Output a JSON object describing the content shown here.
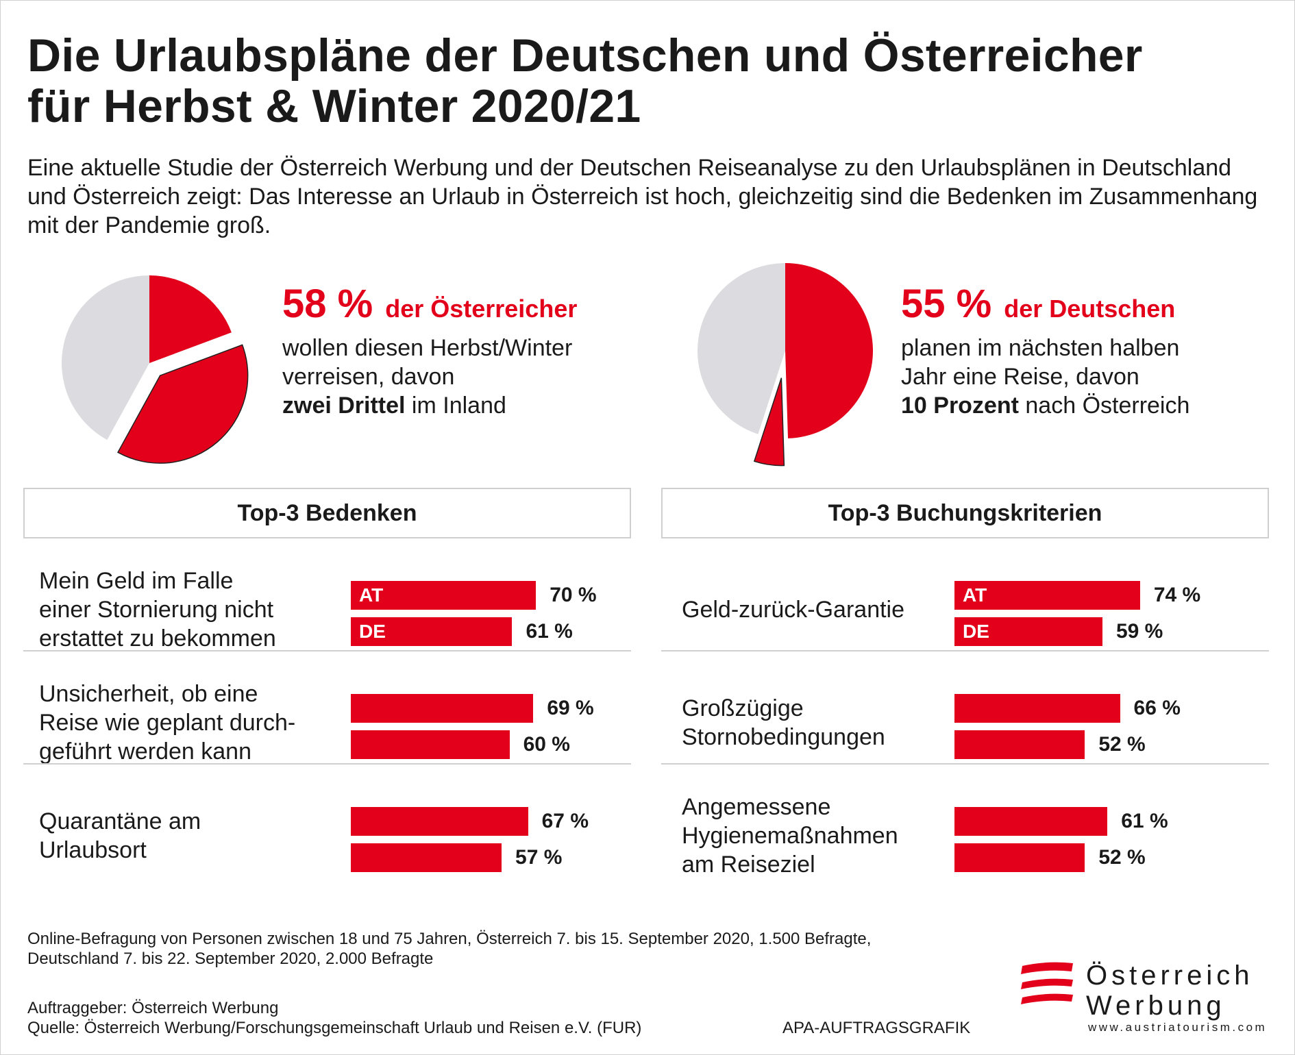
{
  "title": "Die Urlaubspläne der Deutschen und Österreicher\nfür Herbst & Winter 2020/21",
  "intro": "Eine aktuelle Studie der Österreich Werbung und der Deutschen Reiseanalyse zu den Urlaubsplänen in Deutschland und Österreich zeigt: Das Interesse an Urlaub in Österreich ist hoch, gleichzeitig sind die Bedenken im Zusammenhang mit der Pandemie groß.",
  "kpi_at": {
    "pct": "58 %",
    "who": "der Österreicher",
    "line1": "wollen diesen Herbst/Winter",
    "line2": "verreisen, davon",
    "bold": "zwei Drittel",
    "rest": " im Inland"
  },
  "kpi_de": {
    "pct": "55 %",
    "who": "der Deutschen",
    "line1": "planen im nächsten halben",
    "line2": "Jahr eine Reise, davon",
    "bold": "10 Prozent",
    "rest": " nach Österreich"
  },
  "concerns": {
    "header": "Top-3 Bedenken",
    "items": [
      {
        "label": "Mein Geld im Falle\neiner Stornierung nicht\nerstattet zu bekommen",
        "at_label": "70 %",
        "de_label": "61 %"
      },
      {
        "label": "Unsicherheit, ob eine\nReise wie geplant durch-\ngeführt werden kann",
        "at_label": "69 %",
        "de_label": "60 %"
      },
      {
        "label": "Quarantäne am\nUrlaubsort",
        "at_label": "67 %",
        "de_label": "57 %"
      }
    ]
  },
  "criteria": {
    "header": "Top-3 Buchungskriterien",
    "items": [
      {
        "label": "Geld-zurück-Garantie",
        "at_label": "74 %",
        "de_label": "59 %"
      },
      {
        "label": "Großzügige\nStornobedingungen",
        "at_label": "66 %",
        "de_label": "52 %"
      },
      {
        "label": "Angemessene\nHygienemaßnahmen\nam Reiseziel",
        "at_label": "61 %",
        "de_label": "52 %"
      }
    ]
  },
  "series_tags": {
    "at": "AT",
    "de": "DE"
  },
  "footnote": "Online-Befragung von Personen zwischen 18 und 75 Jahren, Österreich 7. bis 15. September 2020, 1.500 Befragte,\nDeutschland 7. bis 22. September 2020, 2.000 Befragte",
  "client": "Auftraggeber: Österreich Werbung\nQuelle: Österreich Werbung/Forschungsgemeinschaft Urlaub und Reisen e.V. (FUR)",
  "apa": "APA-AUFTRAGSGRAFIK",
  "logo": {
    "word": "Österreich\nWerbung",
    "url": "www.austriatourism.com"
  },
  "colors": {
    "accent": "#e2001a",
    "grey": "#dcdce0",
    "text": "#1a1a1a"
  },
  "chart_data": [
    {
      "type": "pie",
      "title": "58 % der Österreicher",
      "slices": [
        {
          "value": 58,
          "exploded": false
        },
        {
          "value": 42,
          "exploded": false
        }
      ],
      "sub_slices_of_travel": [
        {
          "value": 0.333
        },
        {
          "value": 0.667,
          "exploded": true
        }
      ]
    },
    {
      "type": "pie",
      "title": "55 % der Deutschen",
      "slices": [
        {
          "value": 55
        },
        {
          "value": 45
        }
      ],
      "sub_slices_of_travel": [
        {
          "value": 0.9
        },
        {
          "value": 0.1,
          "exploded": true
        }
      ]
    },
    {
      "type": "bar",
      "title": "Top-3 Bedenken",
      "categories": [
        "Mein Geld im Falle einer Stornierung nicht erstattet zu bekommen",
        "Unsicherheit, ob eine Reise wie geplant durchgeführt werden kann",
        "Quarantäne am Urlaubsort"
      ],
      "series": [
        {
          "name": "AT",
          "values": [
            70,
            69,
            67
          ]
        },
        {
          "name": "DE",
          "values": [
            61,
            60,
            57
          ]
        }
      ]
    },
    {
      "type": "bar",
      "title": "Top-3 Buchungskriterien",
      "categories": [
        "Geld-zurück-Garantie",
        "Großzügige Stornobedingungen",
        "Angemessene Hygienemaßnahmen am Reiseziel"
      ],
      "series": [
        {
          "name": "AT",
          "values": [
            74,
            66,
            61
          ]
        },
        {
          "name": "DE",
          "values": [
            59,
            52,
            52
          ]
        }
      ]
    }
  ]
}
